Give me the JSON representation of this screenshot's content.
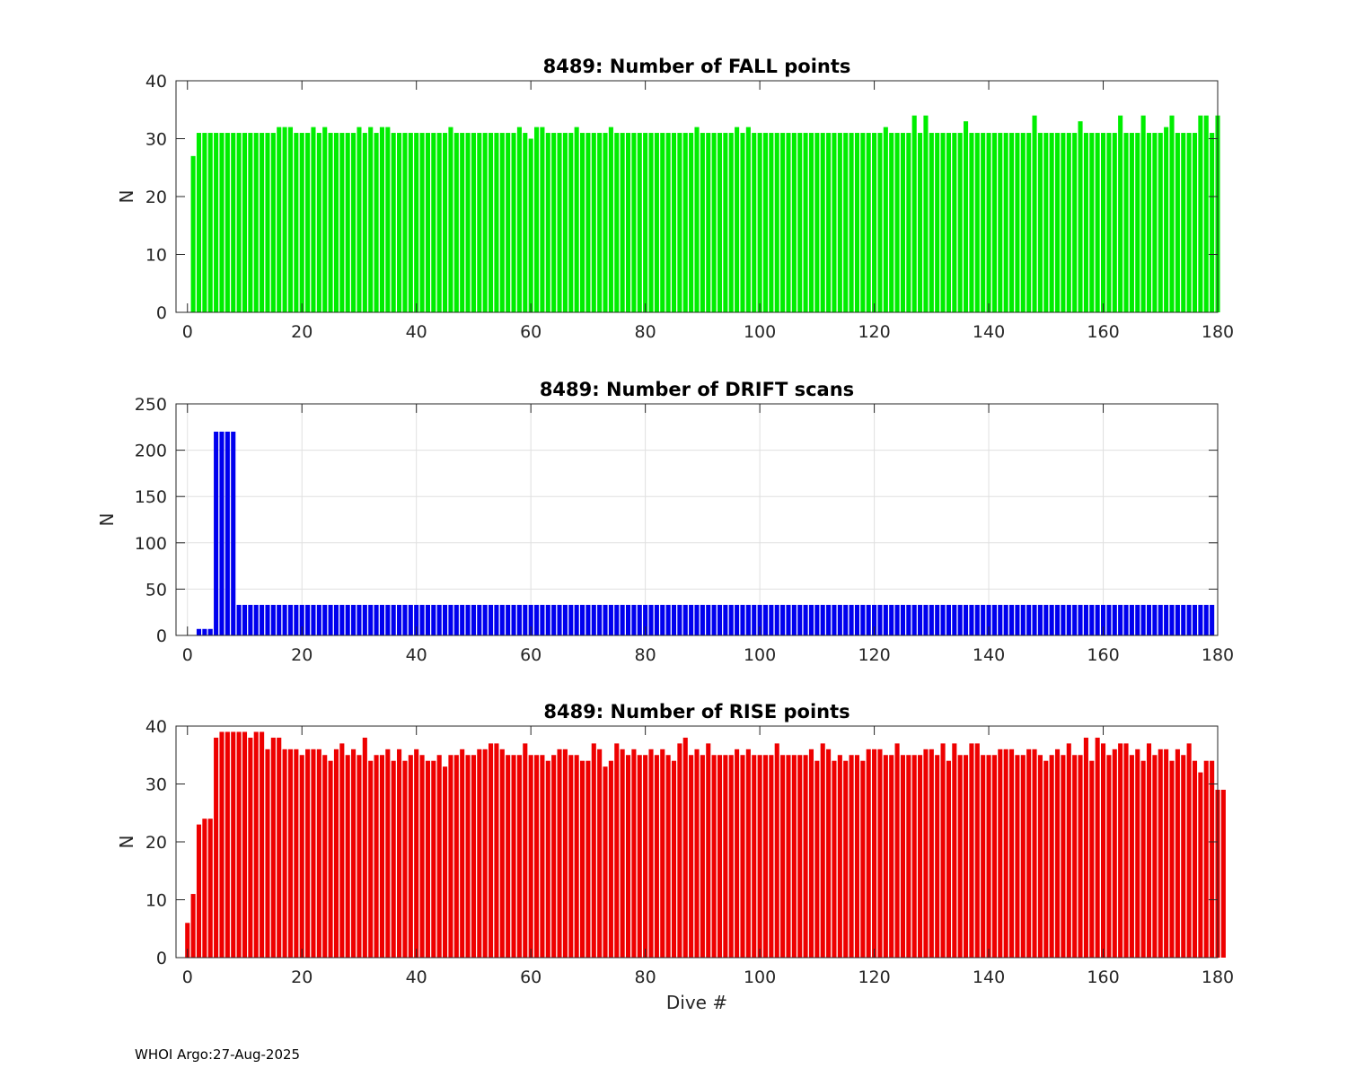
{
  "footer": {
    "text": "WHOI Argo:27-Aug-2025"
  },
  "chart_data": [
    {
      "type": "bar",
      "title": "8489: Number of FALL points",
      "xlabel": "",
      "ylabel": "N",
      "xlim": [
        -2,
        180
      ],
      "ylim": [
        0,
        40
      ],
      "xticks": [
        0,
        20,
        40,
        60,
        80,
        100,
        120,
        140,
        160,
        180
      ],
      "yticks": [
        0,
        10,
        20,
        30,
        40
      ],
      "grid": false,
      "color": "#00ee00",
      "x_start": 1,
      "values": [
        27,
        31,
        31,
        31,
        31,
        31,
        31,
        31,
        31,
        31,
        31,
        31,
        31,
        31,
        31,
        32,
        32,
        32,
        31,
        31,
        31,
        32,
        31,
        32,
        31,
        31,
        31,
        31,
        31,
        32,
        31,
        32,
        31,
        32,
        32,
        31,
        31,
        31,
        31,
        31,
        31,
        31,
        31,
        31,
        31,
        32,
        31,
        31,
        31,
        31,
        31,
        31,
        31,
        31,
        31,
        31,
        31,
        32,
        31,
        30,
        32,
        32,
        31,
        31,
        31,
        31,
        31,
        32,
        31,
        31,
        31,
        31,
        31,
        32,
        31,
        31,
        31,
        31,
        31,
        31,
        31,
        31,
        31,
        31,
        31,
        31,
        31,
        31,
        32,
        31,
        31,
        31,
        31,
        31,
        31,
        32,
        31,
        32,
        31,
        31,
        31,
        31,
        31,
        31,
        31,
        31,
        31,
        31,
        31,
        31,
        31,
        31,
        31,
        31,
        31,
        31,
        31,
        31,
        31,
        31,
        31,
        32,
        31,
        31,
        31,
        31,
        34,
        31,
        34,
        31,
        31,
        31,
        31,
        31,
        31,
        33,
        31,
        31,
        31,
        31,
        31,
        31,
        31,
        31,
        31,
        31,
        31,
        34,
        31,
        31,
        31,
        31,
        31,
        31,
        31,
        33,
        31,
        31,
        31,
        31,
        31,
        31,
        34,
        31,
        31,
        31,
        34,
        31,
        31,
        31,
        32,
        34,
        31,
        31,
        31,
        31,
        34,
        34,
        31,
        34
      ]
    },
    {
      "type": "bar",
      "title": "8489: Number of DRIFT scans",
      "xlabel": "",
      "ylabel": "N",
      "xlim": [
        -2,
        180
      ],
      "ylim": [
        0,
        250
      ],
      "xticks": [
        0,
        20,
        40,
        60,
        80,
        100,
        120,
        140,
        160,
        180
      ],
      "yticks": [
        0,
        50,
        100,
        150,
        200,
        250
      ],
      "grid": true,
      "color": "#0000ee",
      "x_start": 2,
      "values": [
        7,
        7,
        7,
        220,
        220,
        220,
        220,
        33,
        33,
        33,
        33,
        33,
        33,
        33,
        33,
        33,
        33,
        33,
        33,
        33,
        33,
        33,
        33,
        33,
        33,
        33,
        33,
        33,
        33,
        33,
        33,
        33,
        33,
        33,
        33,
        33,
        33,
        33,
        33,
        33,
        33,
        33,
        33,
        33,
        33,
        33,
        33,
        33,
        33,
        33,
        33,
        33,
        33,
        33,
        33,
        33,
        33,
        33,
        33,
        33,
        33,
        33,
        33,
        33,
        33,
        33,
        33,
        33,
        33,
        33,
        33,
        33,
        33,
        33,
        33,
        33,
        33,
        33,
        33,
        33,
        33,
        33,
        33,
        33,
        33,
        33,
        33,
        33,
        33,
        33,
        33,
        33,
        33,
        33,
        33,
        33,
        33,
        33,
        33,
        33,
        33,
        33,
        33,
        33,
        33,
        33,
        33,
        33,
        33,
        33,
        33,
        33,
        33,
        33,
        33,
        33,
        33,
        33,
        33,
        33,
        33,
        33,
        33,
        33,
        33,
        33,
        33,
        33,
        33,
        33,
        33,
        33,
        33,
        33,
        33,
        33,
        33,
        33,
        33,
        33,
        33,
        33,
        33,
        33,
        33,
        33,
        33,
        33,
        33,
        33,
        33,
        33,
        33,
        33,
        33,
        33,
        33,
        33,
        33,
        33,
        33,
        33,
        33,
        33,
        33,
        33,
        33,
        33,
        33,
        33,
        33,
        33,
        33,
        33,
        33,
        33,
        33,
        33
      ]
    },
    {
      "type": "bar",
      "title": "8489: Number of RISE points",
      "xlabel": "Dive #",
      "ylabel": "N",
      "xlim": [
        -2,
        180
      ],
      "ylim": [
        0,
        40
      ],
      "xticks": [
        0,
        20,
        40,
        60,
        80,
        100,
        120,
        140,
        160,
        180
      ],
      "yticks": [
        0,
        10,
        20,
        30,
        40
      ],
      "grid": false,
      "color": "#ee0000",
      "x_start": 0,
      "values": [
        6,
        11,
        23,
        24,
        24,
        38,
        39,
        39,
        39,
        39,
        39,
        38,
        39,
        39,
        36,
        38,
        38,
        36,
        36,
        36,
        35,
        36,
        36,
        36,
        35,
        34,
        36,
        37,
        35,
        36,
        35,
        38,
        34,
        35,
        35,
        36,
        34,
        36,
        34,
        35,
        36,
        35,
        34,
        34,
        35,
        33,
        35,
        35,
        36,
        35,
        35,
        36,
        36,
        37,
        37,
        36,
        35,
        35,
        35,
        37,
        35,
        35,
        35,
        34,
        35,
        36,
        36,
        35,
        35,
        34,
        34,
        37,
        36,
        33,
        34,
        37,
        36,
        35,
        36,
        35,
        35,
        36,
        35,
        36,
        35,
        34,
        37,
        38,
        35,
        36,
        35,
        37,
        35,
        35,
        35,
        35,
        36,
        35,
        36,
        35,
        35,
        35,
        35,
        37,
        35,
        35,
        35,
        35,
        35,
        36,
        34,
        37,
        36,
        34,
        35,
        34,
        35,
        35,
        34,
        36,
        36,
        36,
        35,
        35,
        37,
        35,
        35,
        35,
        35,
        36,
        36,
        35,
        37,
        34,
        37,
        35,
        35,
        37,
        37,
        35,
        35,
        35,
        36,
        36,
        36,
        35,
        35,
        36,
        36,
        35,
        34,
        35,
        36,
        35,
        37,
        35,
        35,
        38,
        34,
        38,
        37,
        35,
        36,
        37,
        37,
        35,
        36,
        34,
        37,
        35,
        36,
        36,
        34,
        36,
        35,
        37,
        34,
        32,
        34,
        34,
        29,
        29
      ]
    }
  ]
}
